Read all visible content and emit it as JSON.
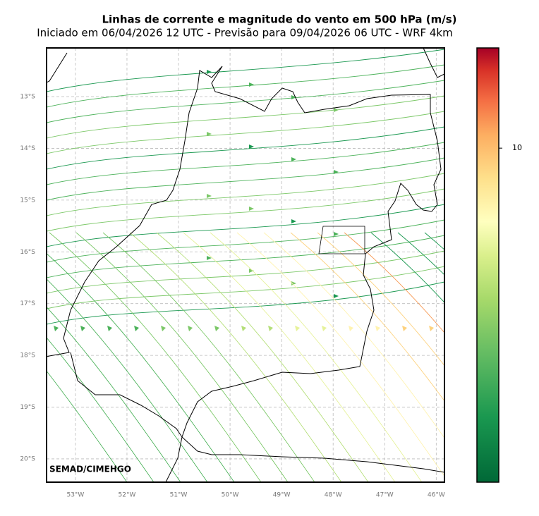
{
  "title": "Linhas de corrente e magnitude do vento em 500 hPa (m/s)",
  "subtitle": "Iniciado em 06/04/2026 12 UTC - Previsão para 09/04/2026 06 UTC - WRF 4km",
  "credit": "SEMAD/CIMEHGO",
  "map": {
    "xlim": [
      -53.56,
      -45.84
    ],
    "ylim": [
      -20.45,
      -12.06
    ],
    "xticks": [
      {
        "value": -53,
        "label": "53°W"
      },
      {
        "value": -52,
        "label": "52°W"
      },
      {
        "value": -51,
        "label": "51°W"
      },
      {
        "value": -50,
        "label": "50°W"
      },
      {
        "value": -49,
        "label": "49°W"
      },
      {
        "value": -48,
        "label": "48°W"
      },
      {
        "value": -47,
        "label": "47°W"
      },
      {
        "value": -46,
        "label": "46°W"
      }
    ],
    "yticks": [
      {
        "value": -13,
        "label": "13°S"
      },
      {
        "value": -14,
        "label": "14°S"
      },
      {
        "value": -15,
        "label": "15°S"
      },
      {
        "value": -16,
        "label": "16°S"
      },
      {
        "value": -17,
        "label": "17°S"
      },
      {
        "value": -18,
        "label": "18°S"
      },
      {
        "value": -19,
        "label": "19°S"
      },
      {
        "value": -20,
        "label": "20°S"
      }
    ],
    "grid": true
  },
  "colorbar": {
    "lim": [
      0,
      13
    ],
    "ticks": [
      10
    ]
  }
}
